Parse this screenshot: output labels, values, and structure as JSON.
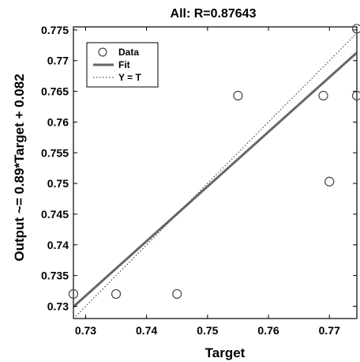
{
  "chart_data": {
    "type": "scatter",
    "title": "All: R=0.87643",
    "xlabel": "Target",
    "ylabel": "Output ~= 0.89*Target + 0.082",
    "xlim": [
      0.728,
      0.7745
    ],
    "ylim": [
      0.728,
      0.7755
    ],
    "xticks": [
      0.73,
      0.74,
      0.75,
      0.76,
      0.77
    ],
    "xtick_labels": [
      "0.73",
      "0.74",
      "0.75",
      "0.76",
      "0.77"
    ],
    "yticks": [
      0.73,
      0.735,
      0.74,
      0.745,
      0.75,
      0.755,
      0.76,
      0.765,
      0.77,
      0.775
    ],
    "ytick_labels": [
      "0.73",
      "0.735",
      "0.74",
      "0.745",
      "0.75",
      "0.755",
      "0.76",
      "0.765",
      "0.77",
      "0.775"
    ],
    "grid": false,
    "legend_position": "top-left",
    "series": [
      {
        "name": "Data",
        "kind": "points",
        "marker": "open-circle",
        "x": [
          0.728,
          0.735,
          0.745,
          0.755,
          0.769,
          0.77,
          0.7745,
          0.7745
        ],
        "y": [
          0.732,
          0.732,
          0.732,
          0.7643,
          0.7643,
          0.7503,
          0.7643,
          0.7752
        ]
      },
      {
        "name": "Fit",
        "kind": "line",
        "style": "solid",
        "slope": 0.89,
        "intercept": 0.082
      },
      {
        "name": "Y = T",
        "kind": "line",
        "style": "dotted",
        "slope": 1,
        "intercept": 0
      }
    ],
    "colors": {
      "axes": "#000000",
      "fit": "#666666",
      "points": "#444444",
      "identity": "#555555"
    }
  }
}
